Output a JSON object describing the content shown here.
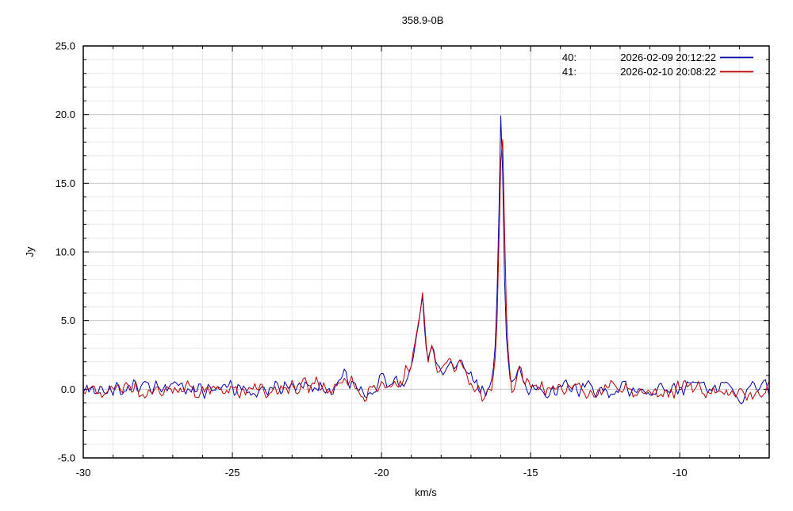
{
  "chart_data": {
    "type": "line",
    "title": "358.9-0B",
    "xlabel": "km/s",
    "ylabel": "Jy",
    "xlim": [
      -30,
      -7
    ],
    "ylim": [
      -5,
      25
    ],
    "grid": {
      "enabled": true,
      "major_color": "#c9c9c9",
      "minor_color": "#e9e9e9",
      "x_minor_step": 1,
      "y_minor_step": 1
    },
    "axis_color": "#000000",
    "x_major_ticks": [
      {
        "v": -30,
        "label": "-30"
      },
      {
        "v": -25,
        "label": "-25"
      },
      {
        "v": -20,
        "label": "-20"
      },
      {
        "v": -15,
        "label": "-15"
      },
      {
        "v": -10,
        "label": "-10"
      }
    ],
    "y_major_ticks": [
      {
        "v": -5,
        "label": "-5.0"
      },
      {
        "v": 0,
        "label": "0.0"
      },
      {
        "v": 5,
        "label": "5.0"
      },
      {
        "v": 10,
        "label": "10.0"
      },
      {
        "v": 15,
        "label": "15.0"
      },
      {
        "v": 20,
        "label": "20.0"
      },
      {
        "v": 25,
        "label": "25.0"
      }
    ],
    "legend": {
      "position": "top-right",
      "entries": [
        {
          "index": "40:",
          "datetime": "2026-02-09 20:12:22",
          "color": "#0000b0"
        },
        {
          "index": "41:",
          "datetime": "2026-02-10 20:08:22",
          "color": "#c00000"
        }
      ]
    },
    "sample_step": 0.0625,
    "noise_amp": 0.75,
    "series": [
      {
        "name": "40: 2026-02-09 20:12:22",
        "color": "#0000b0",
        "noise_seed": 91,
        "peak_summary": [
          {
            "center": -18.63,
            "height": 6.9
          },
          {
            "center": -18.3,
            "height": 3.2
          },
          {
            "center": -17.5,
            "height": 2.1
          },
          {
            "center": -16.0,
            "height": 19.9
          }
        ],
        "profile_points": [
          [
            -30,
            0
          ],
          [
            -28,
            0
          ],
          [
            -26,
            0
          ],
          [
            -24,
            0
          ],
          [
            -22.5,
            0.3
          ],
          [
            -22.0,
            0
          ],
          [
            -21.6,
            0.1
          ],
          [
            -21.3,
            1.0
          ],
          [
            -21.05,
            0.3
          ],
          [
            -20.7,
            -0.2
          ],
          [
            -20.3,
            0.1
          ],
          [
            -19.9,
            0.8
          ],
          [
            -19.55,
            0.3
          ],
          [
            -19.3,
            0.5
          ],
          [
            -19.0,
            1.6
          ],
          [
            -18.85,
            3.5
          ],
          [
            -18.72,
            5.2
          ],
          [
            -18.63,
            6.9
          ],
          [
            -18.55,
            4.2
          ],
          [
            -18.45,
            2.1
          ],
          [
            -18.35,
            2.9
          ],
          [
            -18.28,
            3.2
          ],
          [
            -18.18,
            1.8
          ],
          [
            -18.02,
            1.1
          ],
          [
            -17.85,
            1.7
          ],
          [
            -17.7,
            2.0
          ],
          [
            -17.55,
            1.7
          ],
          [
            -17.4,
            2.2
          ],
          [
            -17.22,
            1.5
          ],
          [
            -17.0,
            0.6
          ],
          [
            -16.8,
            0.1
          ],
          [
            -16.6,
            -0.3
          ],
          [
            -16.45,
            0
          ],
          [
            -16.32,
            0.6
          ],
          [
            -16.22,
            1.8
          ],
          [
            -16.14,
            5.5
          ],
          [
            -16.07,
            12.0
          ],
          [
            -16.0,
            19.9
          ],
          [
            -15.94,
            16.0
          ],
          [
            -15.88,
            8.5
          ],
          [
            -15.8,
            3.0
          ],
          [
            -15.68,
            0.6
          ],
          [
            -15.55,
            0.7
          ],
          [
            -15.4,
            1.5
          ],
          [
            -15.25,
            0.9
          ],
          [
            -15.05,
            0.2
          ],
          [
            -14.7,
            0
          ],
          [
            -14,
            0
          ],
          [
            -12,
            0
          ],
          [
            -10,
            0
          ],
          [
            -8.5,
            0
          ],
          [
            -7.9,
            -0.6
          ],
          [
            -7.6,
            0.2
          ],
          [
            -7,
            0
          ]
        ]
      },
      {
        "name": "41: 2026-02-10 20:08:22",
        "color": "#c00000",
        "noise_seed": 47,
        "peak_summary": [
          {
            "center": -18.62,
            "height": 7.0
          },
          {
            "center": -18.3,
            "height": 3.4
          },
          {
            "center": -17.5,
            "height": 2.0
          },
          {
            "center": -15.96,
            "height": 20.1
          }
        ],
        "profile_points": [
          [
            -30,
            0
          ],
          [
            -28,
            0
          ],
          [
            -26,
            0
          ],
          [
            -24,
            0
          ],
          [
            -22.2,
            0.4
          ],
          [
            -21.8,
            0
          ],
          [
            -21.45,
            0.2
          ],
          [
            -21.2,
            0.9
          ],
          [
            -20.95,
            0.1
          ],
          [
            -20.75,
            -0.3
          ],
          [
            -20.6,
            -1.1
          ],
          [
            -20.45,
            -0.3
          ],
          [
            -20.15,
            0.2
          ],
          [
            -19.85,
            0.7
          ],
          [
            -19.55,
            0.2
          ],
          [
            -19.3,
            0.6
          ],
          [
            -19.0,
            1.8
          ],
          [
            -18.85,
            3.8
          ],
          [
            -18.7,
            5.5
          ],
          [
            -18.62,
            7.0
          ],
          [
            -18.52,
            3.9
          ],
          [
            -18.44,
            2.0
          ],
          [
            -18.3,
            3.4
          ],
          [
            -18.2,
            1.9
          ],
          [
            -18.05,
            1.0
          ],
          [
            -17.88,
            1.8
          ],
          [
            -17.72,
            2.1
          ],
          [
            -17.56,
            1.6
          ],
          [
            -17.42,
            2.0
          ],
          [
            -17.25,
            1.3
          ],
          [
            -17.0,
            0.5
          ],
          [
            -16.8,
            0.1
          ],
          [
            -16.55,
            -0.4
          ],
          [
            -16.42,
            -0.1
          ],
          [
            -16.3,
            0.5
          ],
          [
            -16.2,
            1.6
          ],
          [
            -16.12,
            5.0
          ],
          [
            -16.04,
            13.0
          ],
          [
            -15.96,
            20.1
          ],
          [
            -15.9,
            15.0
          ],
          [
            -15.83,
            6.5
          ],
          [
            -15.73,
            1.8
          ],
          [
            -15.62,
            0.3
          ],
          [
            -15.5,
            0.6
          ],
          [
            -15.35,
            1.1
          ],
          [
            -15.15,
            0.4
          ],
          [
            -14.8,
            0.1
          ],
          [
            -14,
            0
          ],
          [
            -12,
            0
          ],
          [
            -10,
            -0.1
          ],
          [
            -9.5,
            0.5
          ],
          [
            -9.2,
            0
          ],
          [
            -8,
            -0.3
          ],
          [
            -7.5,
            -0.4
          ],
          [
            -7,
            0
          ]
        ]
      }
    ]
  }
}
